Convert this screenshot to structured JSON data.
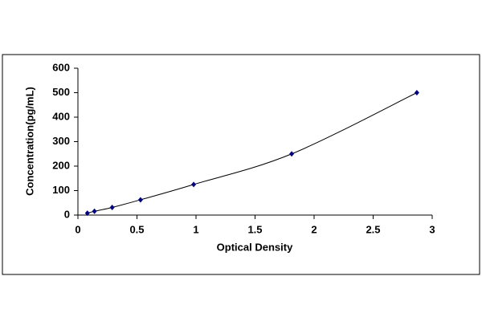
{
  "chart_data": {
    "type": "scatter",
    "x_label": "Optical Density",
    "y_label": "Concentration(pg/mL)",
    "x": [
      0.08,
      0.14,
      0.29,
      0.53,
      0.98,
      1.81,
      2.87
    ],
    "values": [
      7.8,
      15.6,
      31.25,
      62.5,
      125,
      250,
      500
    ],
    "color": "#000080",
    "line_color": "#000000",
    "xlim": [
      0,
      3
    ],
    "xticks": [
      0,
      0.5,
      1,
      1.5,
      2,
      2.5,
      3
    ],
    "ylim": [
      0,
      600
    ],
    "yticks": [
      0,
      100,
      200,
      300,
      400,
      500,
      600
    ]
  }
}
